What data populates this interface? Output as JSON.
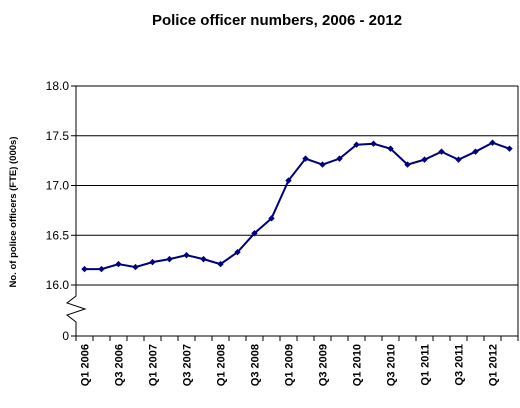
{
  "chart_data": {
    "type": "line",
    "title": "Police officer numbers, 2006 - 2012",
    "ylabel": "No. of police officers (FTE) (000s)",
    "y_ticks": [
      "18.0",
      "17.5",
      "17.0",
      "16.5",
      "16.0",
      "0"
    ],
    "y_tick_values": [
      18.0,
      17.5,
      17.0,
      16.5,
      16.0,
      0
    ],
    "ylim": [
      15.6,
      18.0
    ],
    "axis_break": "zigzag between 0 and 16.0",
    "grid": "horizontal",
    "x_tick_labels": [
      "Q1 2006",
      "Q3 2006",
      "Q1 2007",
      "Q3 2007",
      "Q1 2008",
      "Q3 2008",
      "Q1 2009",
      "Q3 2009",
      "Q1 2010",
      "Q3 2010",
      "Q1 2011",
      "Q3 2011",
      "Q1 2012"
    ],
    "x": [
      "Q1 2006",
      "Q2 2006",
      "Q3 2006",
      "Q4 2006",
      "Q1 2007",
      "Q2 2007",
      "Q3 2007",
      "Q4 2007",
      "Q1 2008",
      "Q2 2008",
      "Q3 2008",
      "Q4 2008",
      "Q1 2009",
      "Q2 2009",
      "Q3 2009",
      "Q4 2009",
      "Q1 2010",
      "Q2 2010",
      "Q3 2010",
      "Q4 2010",
      "Q1 2011",
      "Q2 2011",
      "Q3 2011",
      "Q4 2011",
      "Q1 2012",
      "Q2 2012"
    ],
    "series": [
      {
        "color": "#000080",
        "values": [
          16.16,
          16.16,
          16.21,
          16.18,
          16.23,
          16.26,
          16.3,
          16.26,
          16.21,
          16.33,
          16.52,
          16.67,
          17.05,
          17.27,
          17.21,
          17.27,
          17.41,
          17.42,
          17.37,
          17.21,
          17.26,
          17.34,
          17.26,
          17.34,
          17.43,
          17.37
        ]
      }
    ]
  }
}
